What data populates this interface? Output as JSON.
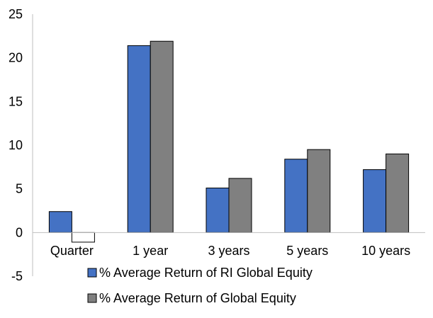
{
  "chart_data": {
    "type": "bar",
    "categories": [
      "Quarter",
      "1 year",
      "3 years",
      "5 years",
      "10 years"
    ],
    "series": [
      {
        "name": "% Average Return of RI Global Equity",
        "values": [
          2.4,
          21.4,
          5.1,
          8.4,
          7.2
        ],
        "color": "#4472c4"
      },
      {
        "name": "% Average Return of Global Equity",
        "values": [
          -1.1,
          21.9,
          6.2,
          9.5,
          9.0
        ],
        "color": "#808080"
      }
    ],
    "negative_fill": "#ffffff",
    "ylim": [
      -5,
      25
    ],
    "yticks": [
      "25",
      "20",
      "15",
      "10",
      "5",
      "0",
      "-5"
    ],
    "ytick_values": [
      25,
      20,
      15,
      10,
      5,
      0,
      -5
    ],
    "grid": false,
    "legend_position": "bottom-center"
  }
}
